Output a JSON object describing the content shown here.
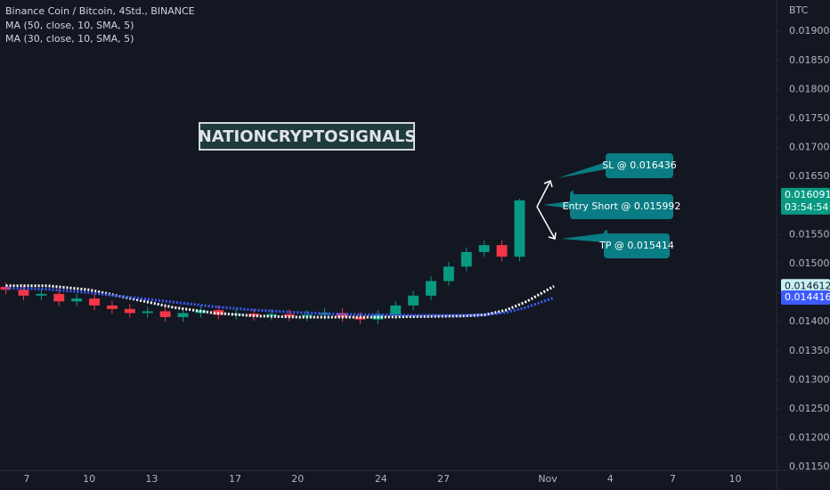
{
  "chart_data": {
    "type": "candlestick",
    "title": "Binance Coin / Bitcoin, 4Std., BINANCE",
    "unit": "BTC",
    "watermark": "NATIONCRYPTOSIGNALS",
    "countdown": "03:54:54",
    "annotations": [
      "SL @ 0.016436",
      "Entry Short @ 0.015992",
      "TP @ 0.015414"
    ],
    "up_color": "#089981",
    "down_color": "#f23645",
    "x": [
      -1,
      -0.15,
      0.7,
      1.55,
      2.4,
      3.25,
      4.1,
      4.95,
      5.8,
      6.65,
      7.5,
      8.35,
      9.2,
      10.05,
      10.9,
      11.75,
      12.6,
      13.45,
      14.3,
      15.15,
      16,
      16.85,
      17.7,
      18.55,
      19.4,
      20.25,
      21.1,
      21.95,
      22.8,
      23.65
    ],
    "open": [
      0.0146,
      0.01455,
      0.01445,
      0.01448,
      0.01435,
      0.0144,
      0.01428,
      0.01422,
      0.01415,
      0.01418,
      0.01408,
      0.01415,
      0.0142,
      0.01412,
      0.01414,
      0.0141,
      0.01413,
      0.01409,
      0.01412,
      0.01415,
      0.01408,
      0.01404,
      0.01412,
      0.01428,
      0.01445,
      0.0147,
      0.01495,
      0.0152,
      0.01532,
      0.01512
    ],
    "high": [
      0.01468,
      0.01463,
      0.01456,
      0.01456,
      0.01448,
      0.01448,
      0.01436,
      0.0143,
      0.01426,
      0.01426,
      0.01423,
      0.01428,
      0.01428,
      0.01422,
      0.01422,
      0.01421,
      0.01421,
      0.0142,
      0.01423,
      0.01423,
      0.01416,
      0.0142,
      0.01436,
      0.01453,
      0.01478,
      0.01503,
      0.01528,
      0.0154,
      0.0154,
      0.01612
    ],
    "low": [
      0.01447,
      0.01437,
      0.01437,
      0.01427,
      0.01427,
      0.0142,
      0.01414,
      0.01407,
      0.01407,
      0.014,
      0.014,
      0.01407,
      0.01404,
      0.01404,
      0.01402,
      0.01402,
      0.01401,
      0.01401,
      0.01404,
      0.014,
      0.01396,
      0.01396,
      0.01404,
      0.0142,
      0.01437,
      0.01462,
      0.01487,
      0.01512,
      0.01504,
      0.01504
    ],
    "close": [
      0.01455,
      0.01445,
      0.01448,
      0.01435,
      0.0144,
      0.01428,
      0.01422,
      0.01415,
      0.01418,
      0.01408,
      0.01415,
      0.0142,
      0.01412,
      0.01414,
      0.0141,
      0.01413,
      0.01409,
      0.01412,
      0.01415,
      0.01408,
      0.01404,
      0.01412,
      0.01428,
      0.01445,
      0.0147,
      0.01495,
      0.0152,
      0.01532,
      0.01512,
      0.016091
    ],
    "series": [
      {
        "name": "MA (50, close, 10, SMA, 5)",
        "color": "#ffffff",
        "x": [
          -1,
          1,
          3,
          5,
          7,
          9,
          11,
          13,
          15,
          17,
          19,
          21,
          22,
          23,
          24,
          25.3
        ],
        "values": [
          0.01462,
          0.01462,
          0.01455,
          0.0144,
          0.01425,
          0.01415,
          0.0141,
          0.01408,
          0.01408,
          0.01408,
          0.01409,
          0.0141,
          0.01412,
          0.0142,
          0.01435,
          0.014612
        ]
      },
      {
        "name": "MA (30, close, 10, SMA, 5)",
        "color": "#3d5afe",
        "x": [
          -1,
          1,
          3,
          5,
          7,
          9,
          11,
          13,
          15,
          17,
          19,
          21,
          22,
          23,
          24,
          25.3
        ],
        "values": [
          0.01458,
          0.01456,
          0.0145,
          0.01442,
          0.01434,
          0.01426,
          0.0142,
          0.01416,
          0.01413,
          0.01412,
          0.01411,
          0.01411,
          0.01412,
          0.01416,
          0.01425,
          0.014416
        ]
      }
    ],
    "xlim": [
      -1.28,
      35.68
    ],
    "xticks": [
      {
        "value": 0,
        "label": "7"
      },
      {
        "value": 3,
        "label": "10"
      },
      {
        "value": 6,
        "label": "13"
      },
      {
        "value": 10,
        "label": "17"
      },
      {
        "value": 13,
        "label": "20"
      },
      {
        "value": 17,
        "label": "24"
      },
      {
        "value": 20,
        "label": "27"
      },
      {
        "value": 25,
        "label": "Nov"
      },
      {
        "value": 28,
        "label": "4"
      },
      {
        "value": 31,
        "label": "7"
      },
      {
        "value": 34,
        "label": "10"
      }
    ],
    "ylim": [
      0.01141,
      0.01954
    ],
    "yticks": [
      {
        "value": 0.0115,
        "label": "0.011500"
      },
      {
        "value": 0.012,
        "label": "0.012000"
      },
      {
        "value": 0.0125,
        "label": "0.012500"
      },
      {
        "value": 0.013,
        "label": "0.013000"
      },
      {
        "value": 0.0135,
        "label": "0.013500"
      },
      {
        "value": 0.014,
        "label": "0.014000"
      },
      {
        "value": 0.0145,
        "label": "0.014500"
      },
      {
        "value": 0.015,
        "label": "0.015000"
      },
      {
        "value": 0.0155,
        "label": "0.015500"
      },
      {
        "value": 0.016,
        "label": "0.016000"
      },
      {
        "value": 0.0165,
        "label": "0.016500"
      },
      {
        "value": 0.017,
        "label": "0.017000"
      },
      {
        "value": 0.0175,
        "label": "0.017500"
      },
      {
        "value": 0.018,
        "label": "0.018000"
      },
      {
        "value": 0.0185,
        "label": "0.018500"
      },
      {
        "value": 0.019,
        "label": "0.019000"
      }
    ],
    "grid": false
  }
}
